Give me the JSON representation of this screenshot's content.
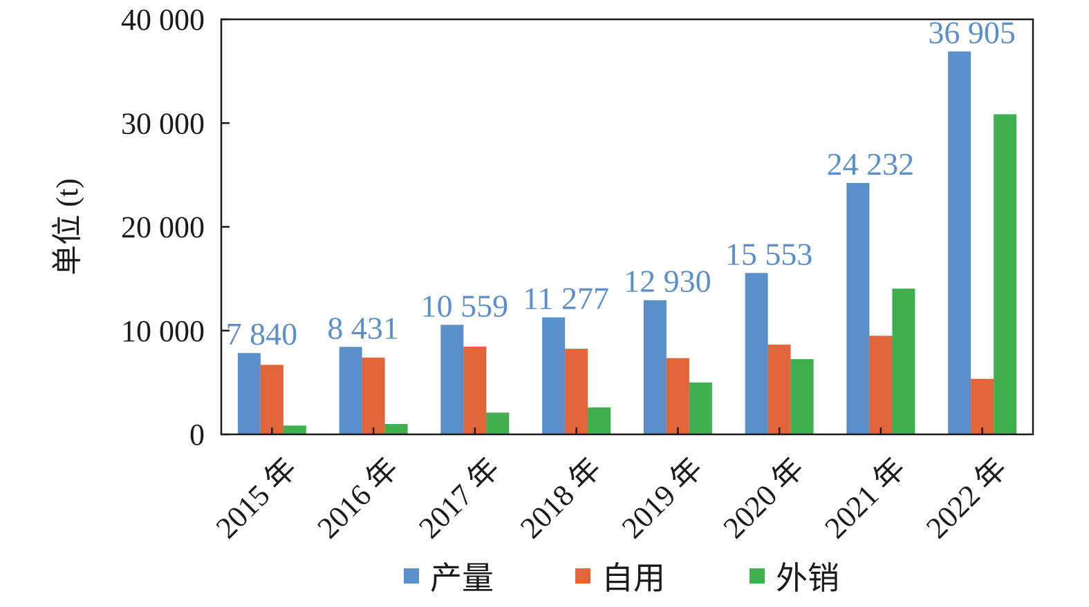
{
  "chart_data": {
    "type": "bar",
    "categories": [
      "2015 年",
      "2016 年",
      "2017 年",
      "2018 年",
      "2019 年",
      "2020 年",
      "2021 年",
      "2022 年"
    ],
    "series": [
      {
        "name": "产量",
        "color": "#5b8fcb",
        "values": [
          7840,
          8431,
          10559,
          11277,
          12930,
          15553,
          24232,
          36905
        ],
        "labels": [
          "7 840",
          "8 431",
          "10 559",
          "11 277",
          "12 930",
          "15 553",
          "24 232",
          "36 905"
        ]
      },
      {
        "name": "自用",
        "color": "#e0663a",
        "values": [
          6700,
          7400,
          8450,
          8250,
          7350,
          8650,
          9500,
          5350
        ]
      },
      {
        "name": "外销",
        "color": "#3faf4f",
        "values": [
          850,
          1000,
          2100,
          2600,
          5000,
          7250,
          14050,
          30850
        ]
      }
    ],
    "ylabel": "单位 (t)",
    "xlabel": "",
    "ylim": [
      0,
      40000
    ],
    "yticks": [
      0,
      10000,
      20000,
      30000,
      40000
    ],
    "ytick_labels": [
      "0",
      "10 000",
      "20 000",
      "30 000",
      "40 000"
    ],
    "grid": false,
    "legend_position": "bottom-center",
    "data_label_color": "#5b8fcb"
  }
}
